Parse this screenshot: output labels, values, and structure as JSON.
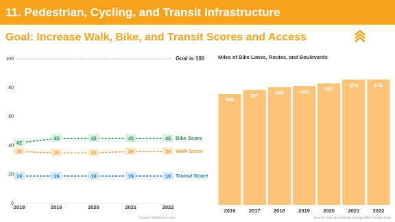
{
  "header": {
    "title": "11. Pedestrian, Cycling, and Transit Infrastructure",
    "goal": "Goal: Increase Walk, Bike, and Transit Scores and Access"
  },
  "chart_data": [
    {
      "type": "line",
      "categories": [
        "2018",
        "2019",
        "2020",
        "2021",
        "2022"
      ],
      "series": [
        {
          "name": "Bike Score",
          "color": "#1e9a4a",
          "values": [
            42,
            45,
            45,
            45,
            45
          ]
        },
        {
          "name": "Walk Score",
          "color": "#f0a030",
          "values": [
            36,
            35,
            35,
            36,
            36
          ]
        },
        {
          "name": "Transit Score",
          "color": "#1a7dc8",
          "values": [
            19,
            19,
            19,
            19,
            19
          ]
        }
      ],
      "ylim": [
        0,
        100
      ],
      "yticks": [
        0,
        20,
        40,
        60,
        80,
        100
      ],
      "goal": {
        "value": 100,
        "label": "Goal is 100"
      },
      "source": "Source: Walkscore.com"
    },
    {
      "type": "bar",
      "title": "Miles of Bike Lanes, Routes, and Boulevards",
      "categories": [
        "2016",
        "2017",
        "2018",
        "2019",
        "2020",
        "2021",
        "2022"
      ],
      "values": [
        509,
        527,
        540,
        545,
        557,
        574,
        575
      ],
      "color": "#fdc478",
      "ylim": [
        0,
        600
      ],
      "source": "Source: City of Colorado Springs Bike Facility Data"
    }
  ]
}
